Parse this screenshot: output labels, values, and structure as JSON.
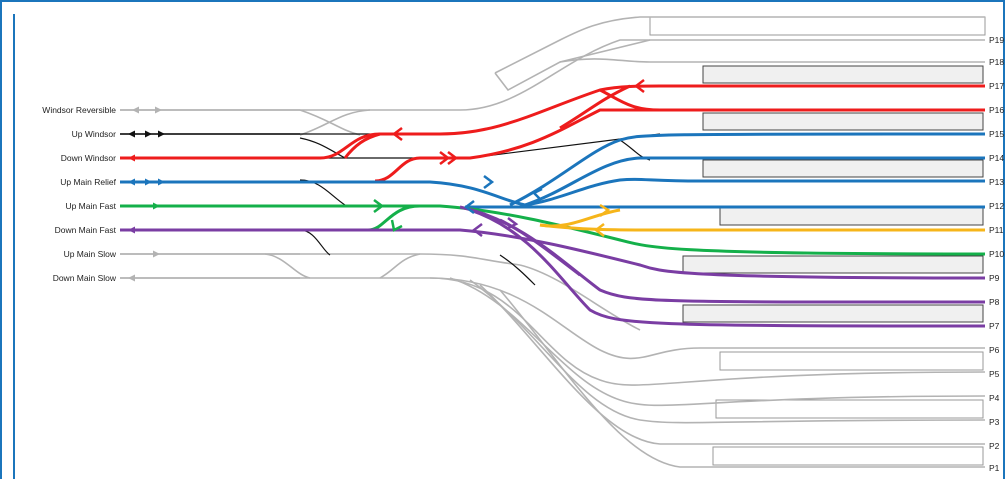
{
  "lines": [
    {
      "id": "windsor-reversible",
      "label": "Windsor Reversible",
      "color": "#b3b3b3"
    },
    {
      "id": "up-windsor",
      "label": "Up Windsor",
      "color": "#111111"
    },
    {
      "id": "down-windsor",
      "label": "Down Windsor",
      "color": "#ee1c1c"
    },
    {
      "id": "up-main-relief",
      "label": "Up Main Relief",
      "color": "#1b75bc"
    },
    {
      "id": "up-main-fast",
      "label": "Up Main Fast",
      "color": "#14b04a"
    },
    {
      "id": "down-main-fast",
      "label": "Down Main Fast",
      "color": "#7a3da3"
    },
    {
      "id": "up-main-slow",
      "label": "Up Main Slow",
      "color": "#b3b3b3"
    },
    {
      "id": "down-main-slow",
      "label": "Down Main Slow",
      "color": "#b3b3b3"
    }
  ],
  "platforms": [
    "P19",
    "P18",
    "P17",
    "P16",
    "P15",
    "P14",
    "P13",
    "P12",
    "P11",
    "P10",
    "P9",
    "P8",
    "P7",
    "P6",
    "P5",
    "P4",
    "P3",
    "P2",
    "P1"
  ],
  "colors": {
    "frame": "#1b75bc",
    "inactive": "#b3b3b3",
    "red": "#ee1c1c",
    "blue": "#1b75bc",
    "green": "#14b04a",
    "purple": "#7a3da3",
    "orange": "#f6b51a",
    "black": "#111111"
  }
}
